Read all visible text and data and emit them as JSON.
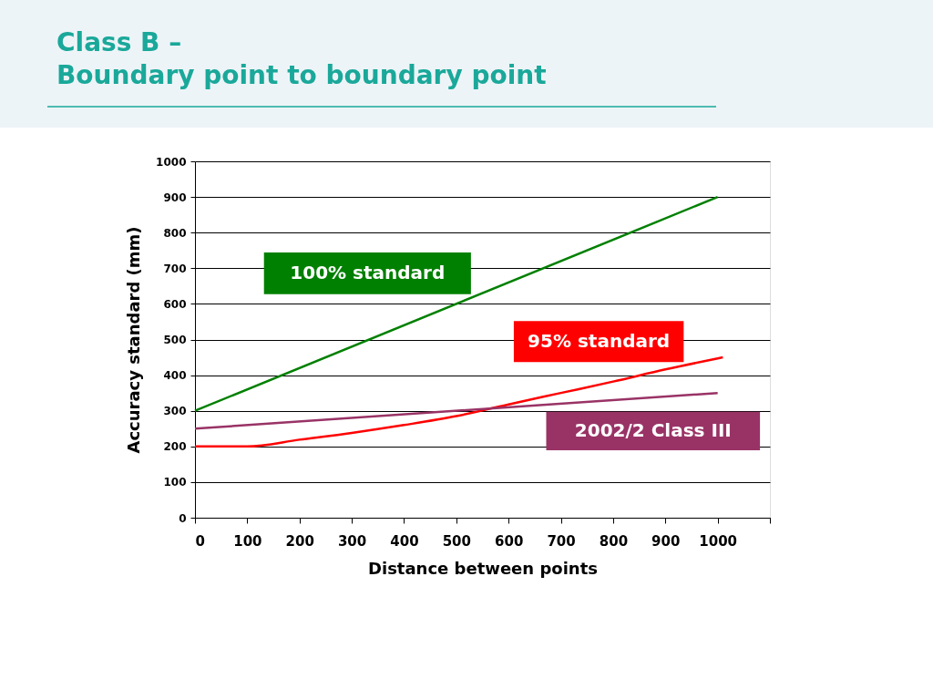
{
  "chart_data": {
    "type": "line",
    "title": "Class B –\nBoundary point to boundary point",
    "xlabel": "Distance between points",
    "ylabel": "Accuracy standard (mm)",
    "xlim": [
      0,
      1100
    ],
    "xticks": [
      0,
      100,
      200,
      300,
      400,
      500,
      600,
      700,
      800,
      900,
      1000,
      {
        "value": 1100,
        "label": null
      }
    ],
    "ylim": [
      0,
      1000
    ],
    "yticks": [
      0,
      100,
      200,
      300,
      400,
      500,
      600,
      700,
      800,
      900,
      1000
    ],
    "grid": "y",
    "series": [
      {
        "name": "100% standard",
        "color": "#008000",
        "x": [
          0,
          1000
        ],
        "values": [
          300,
          900
        ]
      },
      {
        "name": "95% standard",
        "color": "#ff0000",
        "x": [
          0,
          100,
          200,
          300,
          400,
          500,
          600,
          700,
          800,
          900,
          1000,
          1010
        ],
        "values": [
          200,
          200,
          219,
          238,
          260,
          285,
          318,
          350,
          382,
          416,
          447,
          450
        ]
      },
      {
        "name": "2002/2 Class III",
        "color": "#993366",
        "x": [
          0,
          1000
        ],
        "values": [
          250,
          350
        ]
      }
    ]
  }
}
